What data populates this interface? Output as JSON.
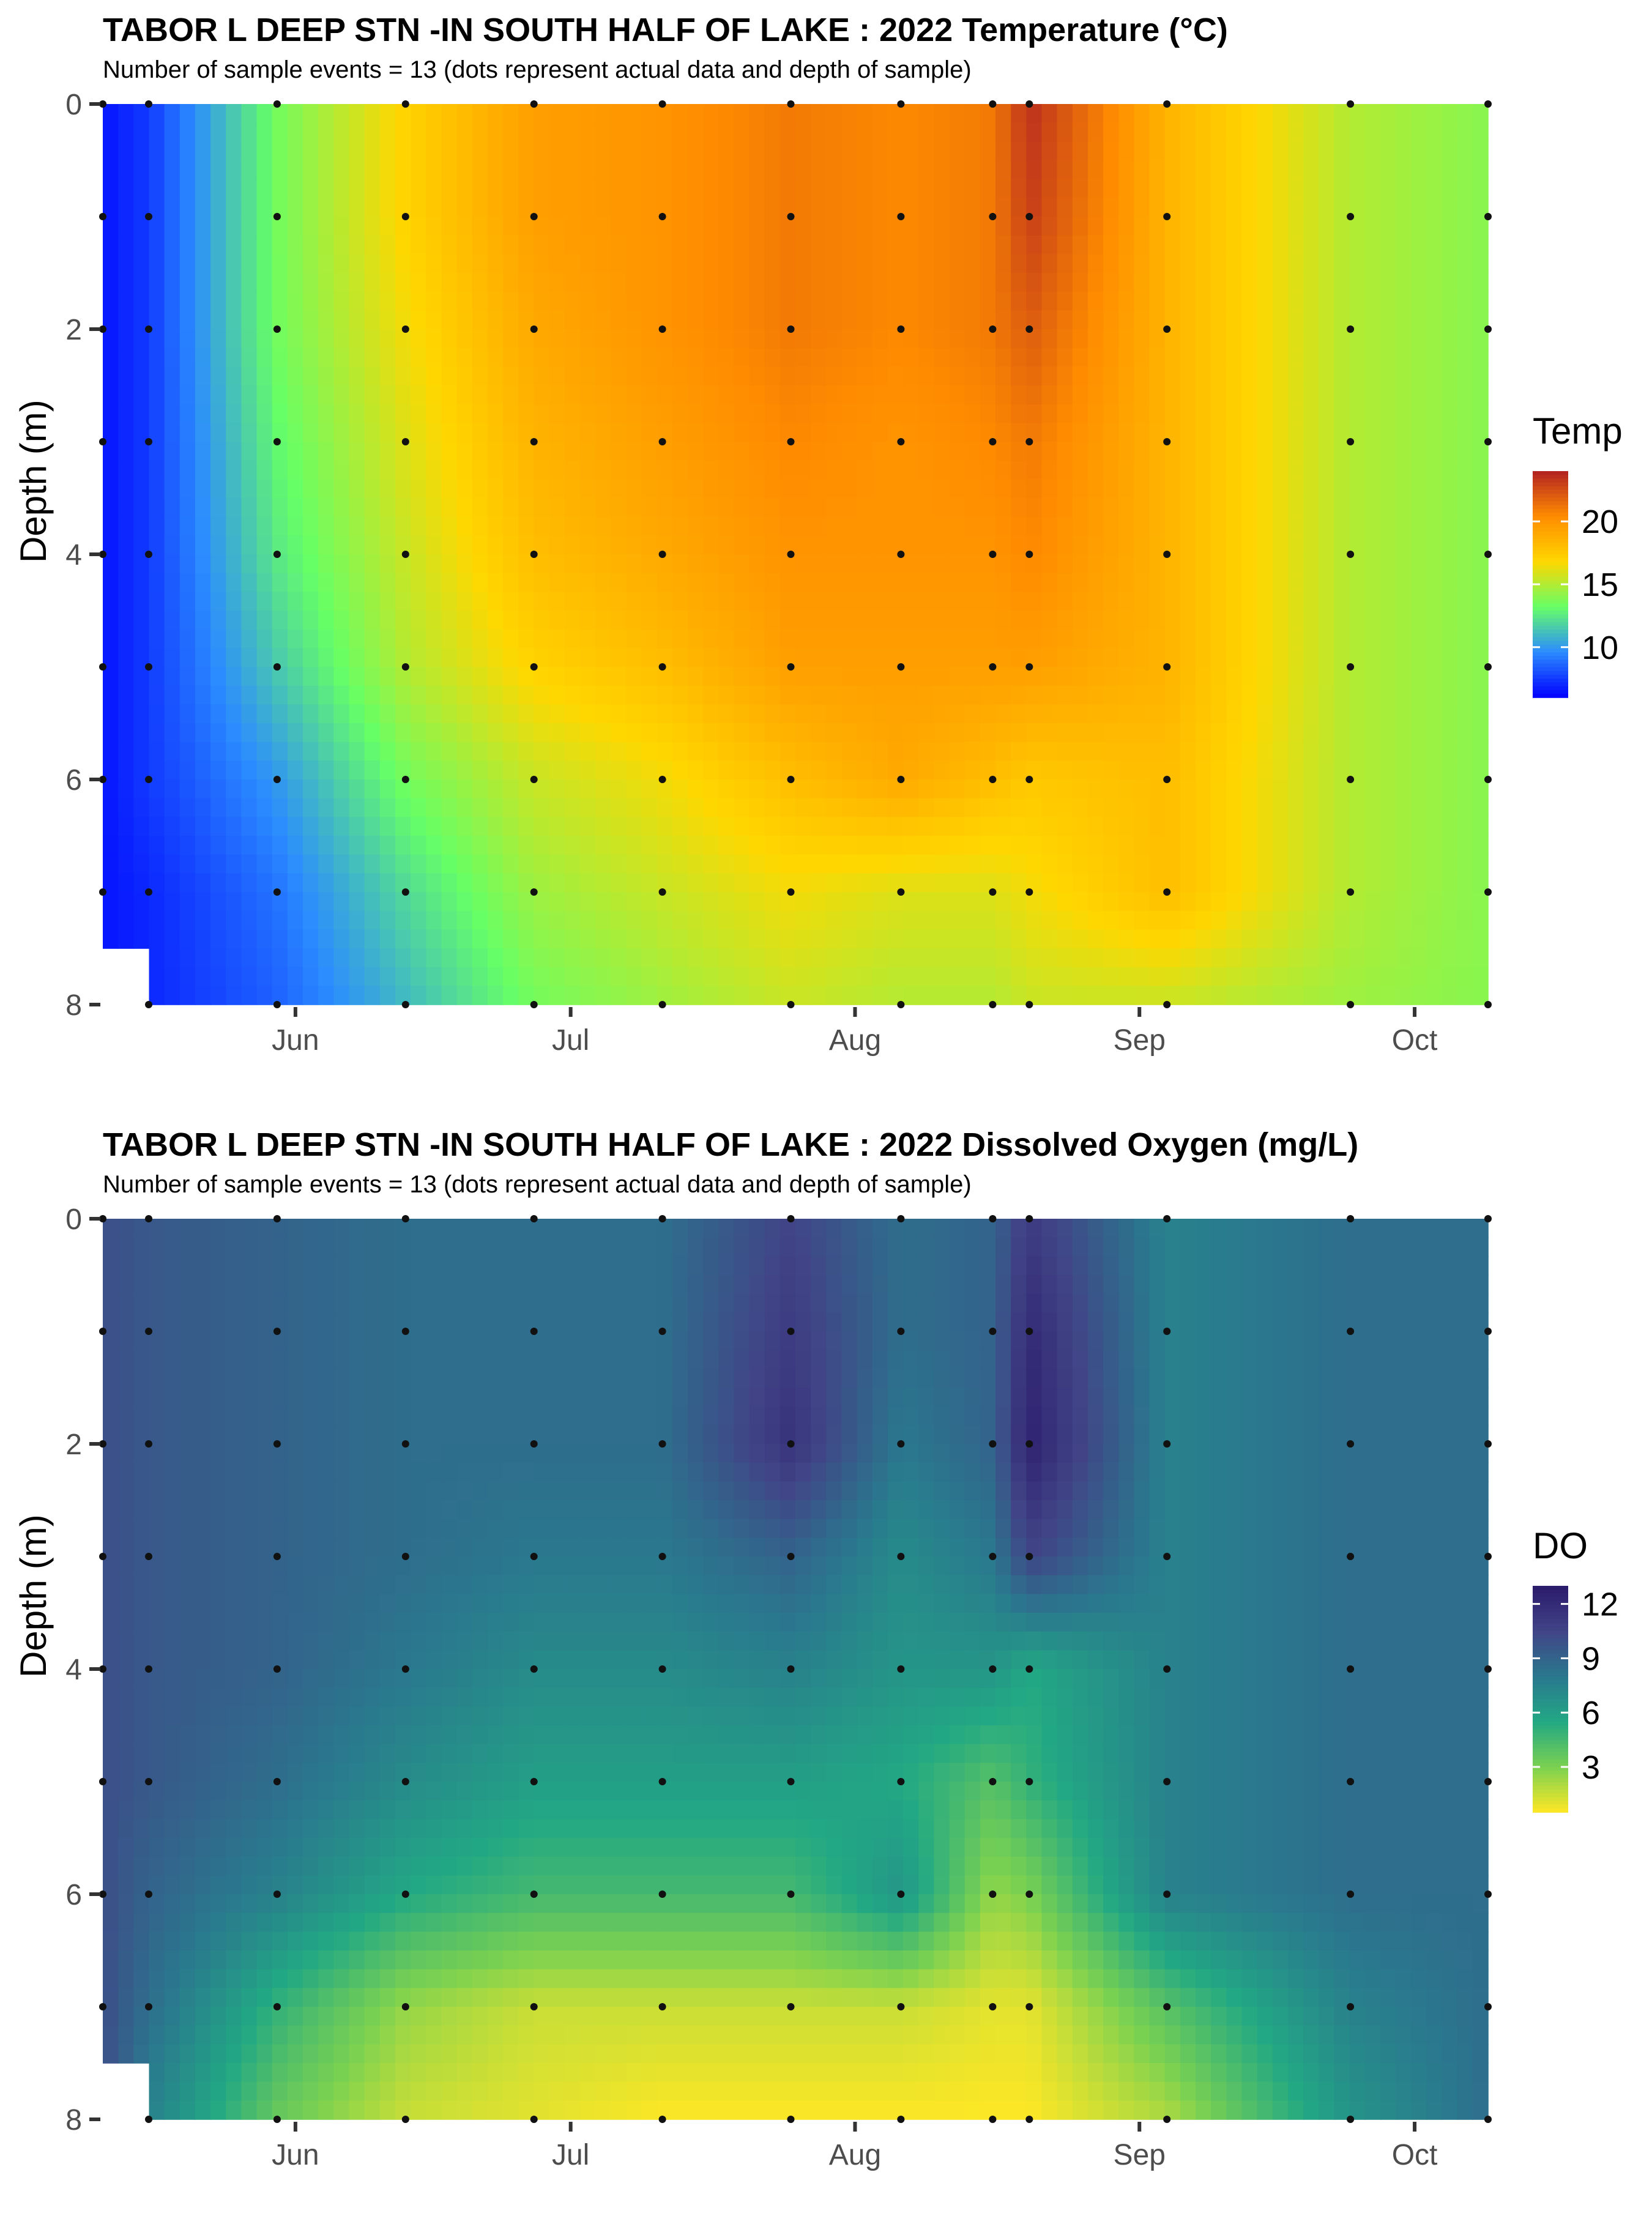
{
  "chart_data": [
    {
      "type": "heatmap",
      "title": "TABOR L DEEP STN -IN SOUTH HALF OF LAKE :  2022 Temperature (°C)",
      "subtitle": "Number of sample events = 13 (dots represent actual data and depth of sample)",
      "ylabel": "Depth (m)",
      "xlabel": "",
      "x_ticks": [
        "Jun",
        "Jul",
        "Aug",
        "Sep",
        "Oct"
      ],
      "y_ticks": [
        "0",
        "2",
        "4",
        "6",
        "8"
      ],
      "ylim": [
        8,
        0
      ],
      "grid": false,
      "legend": {
        "title": "Temp",
        "position": "right",
        "range": [
          6,
          24
        ],
        "ticks": [
          "10",
          "15",
          "20"
        ],
        "colors": [
          "#0000ff",
          "#2b8cff",
          "#66ff66",
          "#ffd700",
          "#ff8c00",
          "#b22222"
        ]
      },
      "sample_dates": [
        "2022-05-11",
        "2022-05-16",
        "2022-05-30",
        "2022-06-13",
        "2022-06-27",
        "2022-07-11",
        "2022-07-25",
        "2022-08-06",
        "2022-08-16",
        "2022-08-20",
        "2022-09-04",
        "2022-09-24",
        "2022-10-09"
      ],
      "sample_depths": [
        0,
        1,
        2,
        3,
        4,
        5,
        6,
        7,
        8
      ],
      "values": [
        [
          6.5,
          7.5,
          13.5,
          17.0,
          19.5,
          20.0,
          21.0,
          20.5,
          21.0,
          23.5,
          18.5,
          15.0,
          14.0
        ],
        [
          6.5,
          7.5,
          13.5,
          17.0,
          19.5,
          20.0,
          21.0,
          20.5,
          21.0,
          23.0,
          18.5,
          15.0,
          14.0
        ],
        [
          6.5,
          7.5,
          13.5,
          16.5,
          19.0,
          20.0,
          21.0,
          20.5,
          21.0,
          22.0,
          18.5,
          15.0,
          14.0
        ],
        [
          6.5,
          7.5,
          13.0,
          16.0,
          18.5,
          19.5,
          20.5,
          20.0,
          20.5,
          21.0,
          18.5,
          15.0,
          14.0
        ],
        [
          6.5,
          7.5,
          12.5,
          15.5,
          18.0,
          19.0,
          20.0,
          20.0,
          20.0,
          20.5,
          18.5,
          15.0,
          14.0
        ],
        [
          6.5,
          7.5,
          11.5,
          15.0,
          17.0,
          18.0,
          19.5,
          19.5,
          19.5,
          19.5,
          18.5,
          15.0,
          14.0
        ],
        [
          6.5,
          7.5,
          10.0,
          13.5,
          15.5,
          16.5,
          18.0,
          19.0,
          18.0,
          17.5,
          18.0,
          15.0,
          14.0
        ],
        [
          6.5,
          7.0,
          9.0,
          12.0,
          14.5,
          15.5,
          16.5,
          16.0,
          16.0,
          16.5,
          18.0,
          15.0,
          14.0
        ],
        [
          null,
          7.0,
          8.5,
          11.0,
          13.5,
          14.5,
          15.5,
          15.0,
          15.0,
          15.5,
          15.5,
          14.5,
          14.0
        ]
      ]
    },
    {
      "type": "heatmap",
      "title": "TABOR L DEEP STN -IN SOUTH HALF OF LAKE :  2022 Dissolved Oxygen (mg/L)",
      "subtitle": "Number of sample events = 13 (dots represent actual data and depth of sample)",
      "ylabel": "Depth (m)",
      "xlabel": "",
      "x_ticks": [
        "Jun",
        "Jul",
        "Aug",
        "Sep",
        "Oct"
      ],
      "y_ticks": [
        "0",
        "2",
        "4",
        "6",
        "8"
      ],
      "ylim": [
        8,
        0
      ],
      "grid": false,
      "legend": {
        "title": "DO",
        "position": "right",
        "range": [
          0.5,
          13
        ],
        "ticks": [
          "3",
          "6",
          "9",
          "12"
        ],
        "colors": [
          "#fde725",
          "#7ad151",
          "#22a884",
          "#2a788e",
          "#414487",
          "#2b1a6b"
        ]
      },
      "sample_dates": [
        "2022-05-11",
        "2022-05-16",
        "2022-05-30",
        "2022-06-13",
        "2022-06-27",
        "2022-07-11",
        "2022-07-25",
        "2022-08-06",
        "2022-08-16",
        "2022-08-20",
        "2022-09-04",
        "2022-09-24",
        "2022-10-09"
      ],
      "sample_depths": [
        0,
        1,
        2,
        3,
        4,
        5,
        6,
        7,
        8
      ],
      "values": [
        [
          10.0,
          9.5,
          9.0,
          8.5,
          8.5,
          8.5,
          10.5,
          8.5,
          9.0,
          11.0,
          7.5,
          8.5,
          8.5
        ],
        [
          10.0,
          9.5,
          9.0,
          8.5,
          8.5,
          8.5,
          11.0,
          8.5,
          9.0,
          12.0,
          7.5,
          8.5,
          8.5
        ],
        [
          10.0,
          9.5,
          9.0,
          8.5,
          8.5,
          8.5,
          11.5,
          8.0,
          9.0,
          12.5,
          7.5,
          8.5,
          8.5
        ],
        [
          10.0,
          9.5,
          9.0,
          8.5,
          8.0,
          8.0,
          9.0,
          7.0,
          8.0,
          10.5,
          7.5,
          8.5,
          8.5
        ],
        [
          10.0,
          9.5,
          9.0,
          8.0,
          7.0,
          7.0,
          7.5,
          6.5,
          6.5,
          5.5,
          7.5,
          8.5,
          8.5
        ],
        [
          10.0,
          9.5,
          8.5,
          7.0,
          6.0,
          6.0,
          6.0,
          5.5,
          4.0,
          5.0,
          7.5,
          8.5,
          8.5
        ],
        [
          10.0,
          9.0,
          7.5,
          5.5,
          4.5,
          4.5,
          4.5,
          6.5,
          2.5,
          3.0,
          7.5,
          8.5,
          8.5
        ],
        [
          10.0,
          8.5,
          5.0,
          2.5,
          1.5,
          1.5,
          1.5,
          1.5,
          1.0,
          1.0,
          4.0,
          7.5,
          8.5
        ],
        [
          null,
          7.5,
          3.5,
          1.5,
          1.0,
          0.5,
          0.5,
          0.5,
          0.5,
          0.5,
          2.0,
          6.5,
          8.5
        ]
      ]
    }
  ]
}
